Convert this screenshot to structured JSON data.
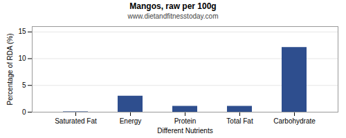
{
  "chart_data": {
    "type": "bar",
    "title": "Mangos, raw per 100g",
    "subtitle": "www.dietandfitnesstoday.com",
    "xlabel": "Different Nutrients",
    "ylabel": "Percentage of RDA (%)",
    "categories": [
      "Saturated Fat",
      "Energy",
      "Protein",
      "Total Fat",
      "Carbohydrate"
    ],
    "values": [
      0.07,
      3.0,
      1.1,
      1.1,
      12.1
    ],
    "color": "#2e4e8e",
    "ylim": [
      0,
      16
    ],
    "yticks": [
      0,
      5,
      10,
      15
    ],
    "grid": true
  }
}
